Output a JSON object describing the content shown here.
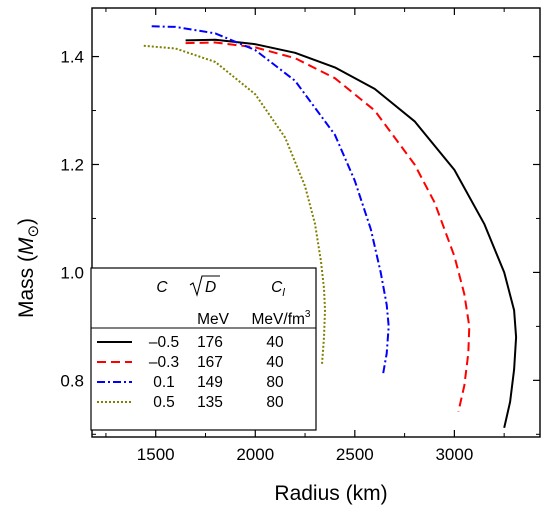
{
  "chart_data": {
    "type": "line",
    "xlabel": "Radius (km)",
    "ylabel": {
      "prefix": "Mass (",
      "symbol": "M",
      "subscript": "⊙",
      "suffix": ")"
    },
    "xlim": [
      1180,
      3430
    ],
    "ylim": [
      0.695,
      1.49
    ],
    "xticks": [
      1500,
      2000,
      2500,
      3000
    ],
    "yticks": [
      0.8,
      1.0,
      1.2,
      1.4
    ],
    "ytick_labels": [
      "0.8",
      "1.0",
      "1.2",
      "1.4"
    ],
    "legend": {
      "placement": "lower-left",
      "headers": {
        "c": "C",
        "sqrtd": "D",
        "cl": "C",
        "cl_sub": "l"
      },
      "units": {
        "sqrtd": "MeV",
        "cl": "MeV/fm",
        "cl_sup": "3"
      }
    },
    "series": [
      {
        "name": "–0.5",
        "sqrtD": "176",
        "Cl": "40",
        "color": "#000000",
        "dash": "none",
        "x": [
          1650,
          1800,
          2000,
          2200,
          2400,
          2600,
          2800,
          3000,
          3150,
          3250,
          3300,
          3310,
          3300,
          3280,
          3250
        ],
        "y": [
          1.43,
          1.431,
          1.423,
          1.407,
          1.38,
          1.34,
          1.28,
          1.19,
          1.09,
          1.0,
          0.93,
          0.88,
          0.82,
          0.76,
          0.712
        ]
      },
      {
        "name": "–0.3",
        "sqrtD": "167",
        "Cl": "40",
        "color": "#ff0000",
        "dash": "9,5",
        "x": [
          1650,
          1800,
          2000,
          2200,
          2400,
          2600,
          2800,
          2900,
          3000,
          3050,
          3075,
          3070,
          3050,
          3020
        ],
        "y": [
          1.425,
          1.426,
          1.417,
          1.397,
          1.36,
          1.3,
          1.2,
          1.13,
          1.03,
          0.96,
          0.9,
          0.85,
          0.79,
          0.742
        ]
      },
      {
        "name": "0.1",
        "sqrtD": "149",
        "Cl": "80",
        "color": "#0000ff",
        "dash": "8,3,2,3",
        "x": [
          1480,
          1600,
          1800,
          2000,
          2200,
          2400,
          2500,
          2580,
          2630,
          2660,
          2670,
          2660,
          2640
        ],
        "y": [
          1.456,
          1.455,
          1.443,
          1.412,
          1.355,
          1.255,
          1.17,
          1.08,
          1.0,
          0.94,
          0.9,
          0.85,
          0.808
        ]
      },
      {
        "name": "0.5",
        "sqrtD": "135",
        "Cl": "80",
        "color": "#808000",
        "dash": "2,2",
        "x": [
          1440,
          1600,
          1800,
          2000,
          2150,
          2250,
          2300,
          2330,
          2345,
          2350,
          2345,
          2335
        ],
        "y": [
          1.42,
          1.415,
          1.39,
          1.33,
          1.25,
          1.16,
          1.09,
          1.02,
          0.97,
          0.93,
          0.88,
          0.83
        ]
      }
    ]
  }
}
